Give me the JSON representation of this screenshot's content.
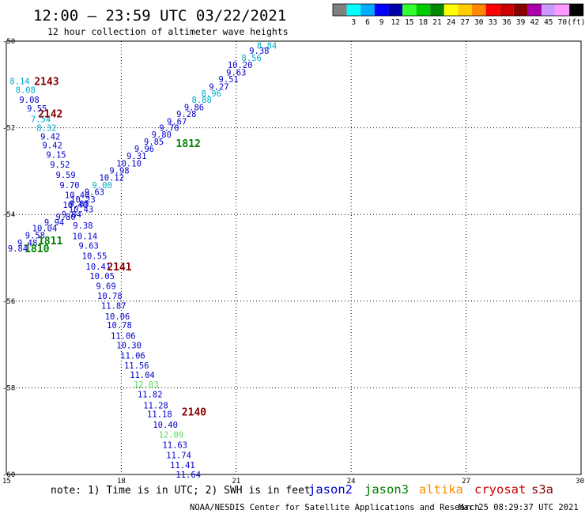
{
  "title": "12:00 — 23:59 UTC 03/22/2021",
  "subtitle": "12 hour collection of altimeter wave heights",
  "note": "note: 1) Time is in UTC; 2) SWH is in feet",
  "credit": "NOAA/NESDIS Center for Satellite Applications and Research",
  "generated": "Mar 25 08:29:37 UTC 2021",
  "satellites": [
    {
      "name": "jason2",
      "color": "#0000cc"
    },
    {
      "name": "jason3",
      "color": "#008000"
    },
    {
      "name": "altika",
      "color": "#ff8c00"
    },
    {
      "name": "cryosat",
      "color": "#cc0000"
    },
    {
      "name": "s3a",
      "color": "#880000"
    }
  ],
  "colorbar": {
    "unit": "(ft)",
    "items": [
      {
        "label": "",
        "color": "#808080"
      },
      {
        "label": "3",
        "color": "#00ffff"
      },
      {
        "label": "6",
        "color": "#00aaff"
      },
      {
        "label": "9",
        "color": "#0000ff"
      },
      {
        "label": "12",
        "color": "#0000aa"
      },
      {
        "label": "15",
        "color": "#33ff33"
      },
      {
        "label": "18",
        "color": "#00cc00"
      },
      {
        "label": "21",
        "color": "#008800"
      },
      {
        "label": "24",
        "color": "#ffff00"
      },
      {
        "label": "27",
        "color": "#ffcc00"
      },
      {
        "label": "30",
        "color": "#ff8800"
      },
      {
        "label": "33",
        "color": "#ff0000"
      },
      {
        "label": "36",
        "color": "#cc0000"
      },
      {
        "label": "39",
        "color": "#880000"
      },
      {
        "label": "42",
        "color": "#aa00aa"
      },
      {
        "label": "45",
        "color": "#cc99ff"
      },
      {
        "label": "70",
        "color": "#ff99ff"
      },
      {
        "label": "",
        "color": "#000000"
      }
    ]
  },
  "chart_data": {
    "type": "scatter",
    "xlim": [
      15,
      30
    ],
    "ylim": [
      -60,
      -50
    ],
    "xticks": [
      "15",
      "18",
      "21",
      "24",
      "27",
      "30"
    ],
    "yticks": [
      "-50",
      "-52",
      "-54",
      "-56",
      "-58",
      "-60"
    ],
    "grid": true,
    "points": [
      {
        "x": 21.8,
        "y": -50.1,
        "v": "8.84",
        "color": "#00aacc"
      },
      {
        "x": 21.6,
        "y": -50.22,
        "v": "9.38",
        "color": "#0000cc"
      },
      {
        "x": 21.4,
        "y": -50.38,
        "v": "8.56",
        "color": "#00aacc"
      },
      {
        "x": 21.1,
        "y": -50.55,
        "v": "10.20",
        "color": "#0000cc"
      },
      {
        "x": 21.0,
        "y": -50.72,
        "v": "9.63",
        "color": "#0000cc"
      },
      {
        "x": 20.8,
        "y": -50.88,
        "v": "9.51",
        "color": "#0000cc"
      },
      {
        "x": 20.55,
        "y": -51.05,
        "v": "9.27",
        "color": "#0000cc"
      },
      {
        "x": 20.35,
        "y": -51.2,
        "v": "8.96",
        "color": "#00aacc"
      },
      {
        "x": 20.1,
        "y": -51.35,
        "v": "8.88",
        "color": "#00aacc"
      },
      {
        "x": 19.9,
        "y": -51.52,
        "v": "9.86",
        "color": "#0000cc"
      },
      {
        "x": 19.7,
        "y": -51.68,
        "v": "9.28",
        "color": "#0000cc"
      },
      {
        "x": 19.45,
        "y": -51.85,
        "v": "9.67",
        "color": "#0000cc"
      },
      {
        "x": 19.25,
        "y": -52.0,
        "v": "9.70",
        "color": "#0000cc"
      },
      {
        "x": 19.05,
        "y": -52.15,
        "v": "9.80",
        "color": "#0000cc"
      },
      {
        "x": 18.85,
        "y": -52.32,
        "v": "9.85",
        "color": "#0000cc"
      },
      {
        "x": 18.6,
        "y": -52.48,
        "v": "9.96",
        "color": "#0000cc"
      },
      {
        "x": 18.4,
        "y": -52.65,
        "v": "9.31",
        "color": "#0000cc"
      },
      {
        "x": 18.2,
        "y": -52.82,
        "v": "10.10",
        "color": "#0000cc"
      },
      {
        "x": 17.95,
        "y": -52.98,
        "v": "9.98",
        "color": "#0000cc"
      },
      {
        "x": 17.75,
        "y": -53.15,
        "v": "10.12",
        "color": "#0000cc"
      },
      {
        "x": 17.5,
        "y": -53.32,
        "v": "9.00",
        "color": "#00aacc"
      },
      {
        "x": 17.3,
        "y": -53.48,
        "v": "9.63",
        "color": "#0000cc"
      },
      {
        "x": 17.0,
        "y": -53.65,
        "v": "10.23",
        "color": "#0000cc"
      },
      {
        "x": 16.8,
        "y": -53.78,
        "v": "10.40",
        "color": "#0000cc"
      },
      {
        "x": 16.95,
        "y": -53.88,
        "v": "10.43",
        "color": "#0000cc"
      },
      {
        "x": 16.7,
        "y": -54.0,
        "v": "9.84",
        "color": "#0000cc"
      },
      {
        "x": 16.55,
        "y": -54.05,
        "v": "9.80",
        "color": "#0000cc"
      },
      {
        "x": 16.25,
        "y": -54.18,
        "v": "9.94",
        "color": "#0000cc"
      },
      {
        "x": 16.0,
        "y": -54.32,
        "v": "10.04",
        "color": "#0000cc"
      },
      {
        "x": 15.75,
        "y": -54.48,
        "v": "9.58",
        "color": "#0000cc"
      },
      {
        "x": 15.55,
        "y": -54.65,
        "v": "9.48",
        "color": "#0000cc"
      },
      {
        "x": 15.3,
        "y": -54.78,
        "v": "9.84",
        "color": "#0000cc"
      },
      {
        "x": 15.35,
        "y": -50.92,
        "v": "8.14",
        "color": "#00aacc"
      },
      {
        "x": 15.5,
        "y": -51.12,
        "v": "8.08",
        "color": "#00aacc"
      },
      {
        "x": 15.6,
        "y": -51.35,
        "v": "9.08",
        "color": "#0000cc"
      },
      {
        "x": 15.8,
        "y": -51.55,
        "v": "9.55",
        "color": "#0000cc"
      },
      {
        "x": 15.9,
        "y": -51.8,
        "v": "7.54",
        "color": "#00aacc"
      },
      {
        "x": 16.05,
        "y": -52.0,
        "v": "8.32",
        "color": "#00aacc"
      },
      {
        "x": 16.15,
        "y": -52.2,
        "v": "9.42",
        "color": "#0000cc"
      },
      {
        "x": 16.2,
        "y": -52.4,
        "v": "9.42",
        "color": "#0000cc"
      },
      {
        "x": 16.3,
        "y": -52.62,
        "v": "9.15",
        "color": "#0000cc"
      },
      {
        "x": 16.4,
        "y": -52.85,
        "v": "9.52",
        "color": "#0000cc"
      },
      {
        "x": 16.55,
        "y": -53.08,
        "v": "9.59",
        "color": "#0000cc"
      },
      {
        "x": 16.65,
        "y": -53.32,
        "v": "9.70",
        "color": "#0000cc"
      },
      {
        "x": 16.85,
        "y": -53.55,
        "v": "10.40",
        "color": "#0000cc"
      },
      {
        "x": 16.9,
        "y": -53.75,
        "v": "9.85",
        "color": "#0000cc"
      },
      {
        "x": 17.0,
        "y": -54.25,
        "v": "9.38",
        "color": "#0000cc"
      },
      {
        "x": 17.05,
        "y": -54.5,
        "v": "10.14",
        "color": "#0000cc"
      },
      {
        "x": 17.15,
        "y": -54.72,
        "v": "9.63",
        "color": "#0000cc"
      },
      {
        "x": 17.3,
        "y": -54.95,
        "v": "10.55",
        "color": "#0000cc"
      },
      {
        "x": 17.4,
        "y": -55.2,
        "v": "10.41",
        "color": "#0000cc"
      },
      {
        "x": 17.5,
        "y": -55.42,
        "v": "10.05",
        "color": "#0000cc"
      },
      {
        "x": 17.6,
        "y": -55.65,
        "v": "9.69",
        "color": "#0000cc"
      },
      {
        "x": 17.7,
        "y": -55.88,
        "v": "10.78",
        "color": "#0000cc"
      },
      {
        "x": 17.8,
        "y": -56.1,
        "v": "11.87",
        "color": "#0000cc"
      },
      {
        "x": 17.9,
        "y": -56.35,
        "v": "10.06",
        "color": "#0000cc"
      },
      {
        "x": 17.95,
        "y": -56.55,
        "v": "10.78",
        "color": "#0000cc"
      },
      {
        "x": 18.05,
        "y": -56.8,
        "v": "11.06",
        "color": "#0000cc"
      },
      {
        "x": 18.2,
        "y": -57.02,
        "v": "10.30",
        "color": "#0000cc"
      },
      {
        "x": 18.3,
        "y": -57.25,
        "v": "11.06",
        "color": "#0000cc"
      },
      {
        "x": 18.4,
        "y": -57.48,
        "v": "11.56",
        "color": "#0000cc"
      },
      {
        "x": 18.55,
        "y": -57.7,
        "v": "11.04",
        "color": "#0000cc"
      },
      {
        "x": 18.65,
        "y": -57.92,
        "v": "12.03",
        "color": "#55dd55"
      },
      {
        "x": 18.75,
        "y": -58.15,
        "v": "11.82",
        "color": "#0000cc"
      },
      {
        "x": 18.9,
        "y": -58.4,
        "v": "11.28",
        "color": "#0000cc"
      },
      {
        "x": 19.0,
        "y": -58.6,
        "v": "11.18",
        "color": "#0000cc"
      },
      {
        "x": 19.15,
        "y": -58.85,
        "v": "10.40",
        "color": "#0000cc"
      },
      {
        "x": 19.3,
        "y": -59.08,
        "v": "12.09",
        "color": "#55dd55"
      },
      {
        "x": 19.4,
        "y": -59.32,
        "v": "11.63",
        "color": "#0000cc"
      },
      {
        "x": 19.5,
        "y": -59.55,
        "v": "11.74",
        "color": "#0000cc"
      },
      {
        "x": 19.6,
        "y": -59.78,
        "v": "11.41",
        "color": "#0000cc"
      },
      {
        "x": 19.75,
        "y": -60.0,
        "v": "11.64",
        "color": "#0000cc"
      }
    ],
    "time_labels": [
      {
        "x": 16.05,
        "y": -50.92,
        "t": "2143",
        "color": "#880000"
      },
      {
        "x": 16.15,
        "y": -51.67,
        "t": "2142",
        "color": "#880000"
      },
      {
        "x": 19.75,
        "y": -52.35,
        "t": "1812",
        "color": "#008000"
      },
      {
        "x": 16.15,
        "y": -54.6,
        "t": "1811",
        "color": "#008000"
      },
      {
        "x": 15.8,
        "y": -54.78,
        "t": "1810",
        "color": "#008000"
      },
      {
        "x": 17.95,
        "y": -55.2,
        "t": "2141",
        "color": "#880000"
      },
      {
        "x": 19.9,
        "y": -58.55,
        "t": "2140",
        "color": "#880000"
      }
    ]
  }
}
